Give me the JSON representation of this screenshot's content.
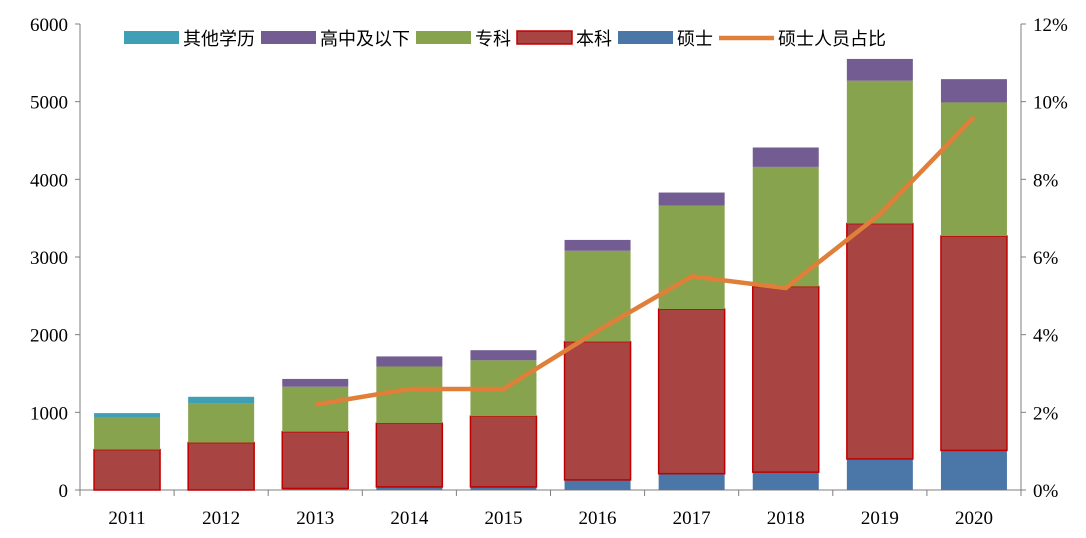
{
  "chart_data": {
    "type": "bar",
    "stacked": true,
    "categories": [
      "2011",
      "2012",
      "2013",
      "2014",
      "2015",
      "2016",
      "2017",
      "2018",
      "2019",
      "2020"
    ],
    "series": [
      {
        "name": "硕士",
        "type": "bar",
        "color": "#4a76a8",
        "values": [
          0,
          0,
          20,
          40,
          40,
          130,
          210,
          230,
          400,
          510
        ]
      },
      {
        "name": "本科",
        "type": "bar",
        "color": "#a84441",
        "values": [
          520,
          610,
          730,
          820,
          910,
          1780,
          2120,
          2390,
          3030,
          2760
        ]
      },
      {
        "name": "专科",
        "type": "bar",
        "color": "#87a34d",
        "values": [
          420,
          500,
          580,
          730,
          720,
          1170,
          1330,
          1540,
          1840,
          1720
        ]
      },
      {
        "name": "高中及以下",
        "type": "bar",
        "color": "#735c91",
        "values": [
          0,
          0,
          100,
          130,
          130,
          140,
          170,
          250,
          280,
          300
        ]
      },
      {
        "name": "其他学历",
        "type": "bar",
        "color": "#3f9fb5",
        "values": [
          50,
          90,
          0,
          0,
          0,
          0,
          0,
          0,
          0,
          0
        ]
      },
      {
        "name": "硕士人员占比",
        "type": "line",
        "axis": "right",
        "color": "#e07f3a",
        "values": [
          null,
          null,
          2.2,
          2.6,
          2.6,
          4.1,
          5.5,
          5.2,
          7.1,
          9.6
        ]
      }
    ],
    "legend_order": [
      "其他学历",
      "高中及以下",
      "专科",
      "本科",
      "硕士",
      "硕士人员占比"
    ],
    "ylim": [
      0,
      6000
    ],
    "yticks": [
      "0",
      "1000",
      "2000",
      "3000",
      "4000",
      "5000",
      "6000"
    ],
    "y2lim": [
      0,
      12
    ],
    "y2ticks": [
      "0%",
      "2%",
      "4%",
      "6%",
      "8%",
      "10%",
      "12%"
    ],
    "legend_position": "top"
  }
}
